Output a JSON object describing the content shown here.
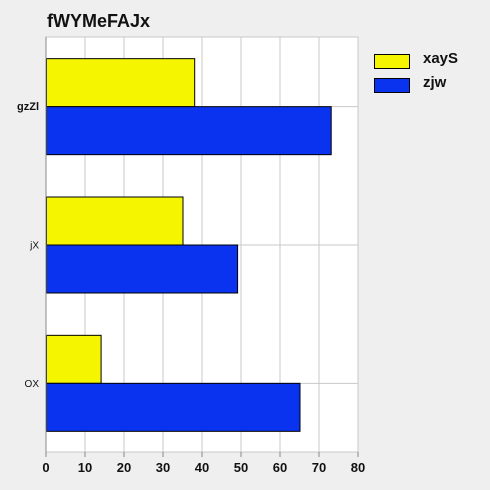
{
  "chart_data": {
    "type": "bar",
    "orientation": "horizontal",
    "title": "fWYMeFAJx",
    "categories": [
      "gzZl",
      "jX",
      "OX"
    ],
    "series": [
      {
        "name": "xayS",
        "values": [
          38,
          35,
          14
        ],
        "color": "#f5f500"
      },
      {
        "name": "zjw",
        "values": [
          73,
          49,
          65
        ],
        "color": "#0a33f0"
      }
    ],
    "xlim": [
      0,
      80
    ],
    "xticks": [
      "0",
      "10",
      "20",
      "30",
      "40",
      "50",
      "60",
      "70",
      "80"
    ],
    "xlabel": "",
    "ylabel": "",
    "grid": true,
    "legend_position": "right"
  }
}
